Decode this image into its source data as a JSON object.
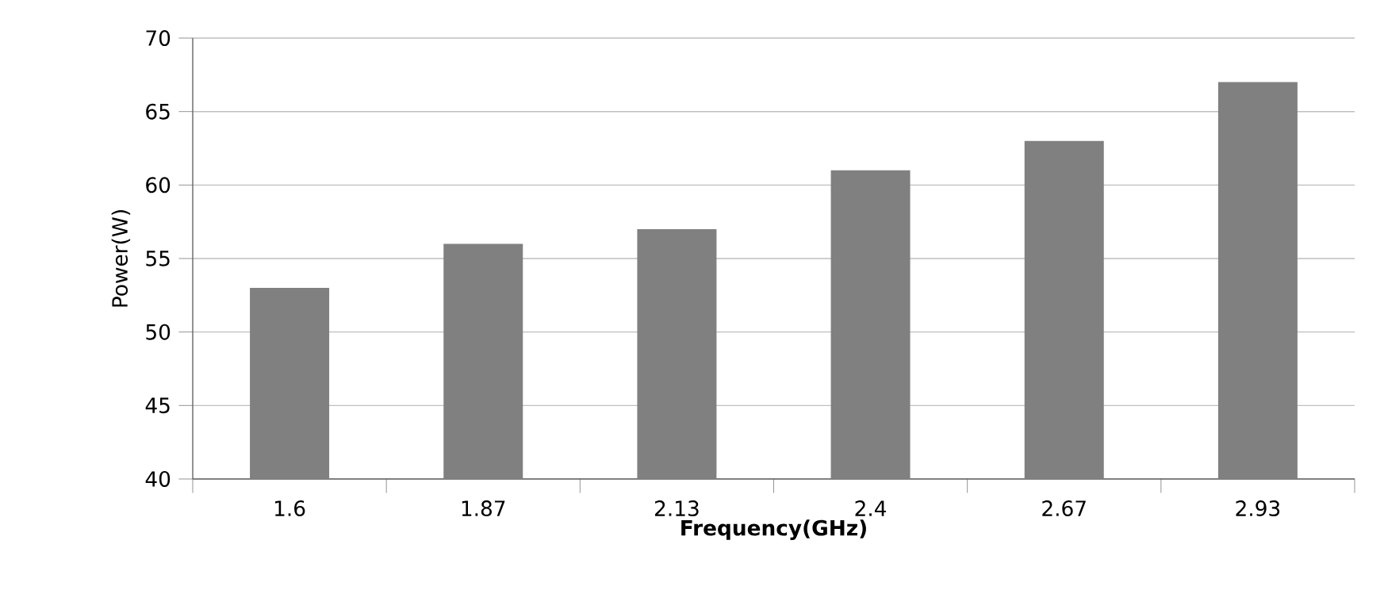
{
  "chart_data": {
    "type": "bar",
    "xlabel": "Frequency(GHz)",
    "ylabel": "Power(W)",
    "categories": [
      "1.6",
      "1.87",
      "2.13",
      "2.4",
      "2.67",
      "2.93"
    ],
    "values": [
      53,
      56,
      57,
      61,
      63,
      67
    ],
    "color": "#808080",
    "ylim": [
      40,
      70
    ],
    "yticks": [
      40,
      45,
      50,
      55,
      60,
      65,
      70
    ],
    "grid": "y"
  }
}
